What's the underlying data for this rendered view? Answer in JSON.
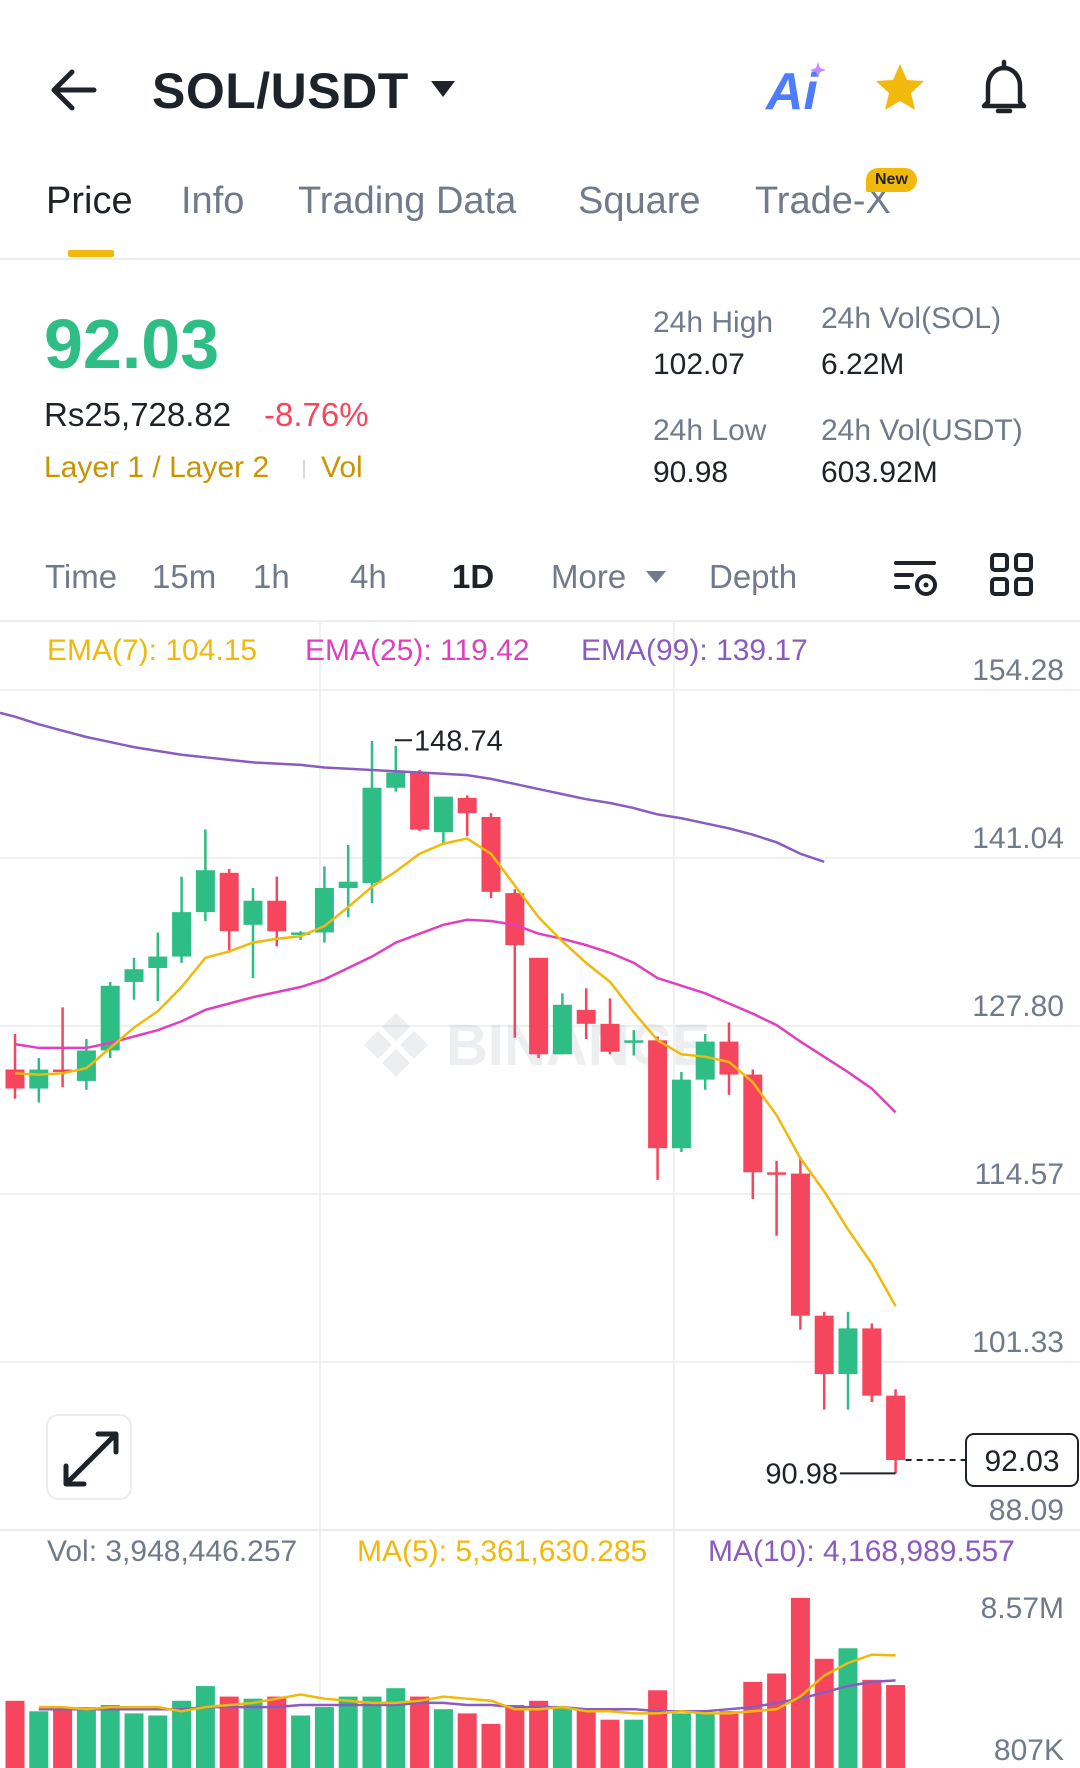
{
  "header": {
    "pair": "SOL/USDT",
    "ai_label": "Ai",
    "icons": [
      "back-arrow-icon",
      "caret-down-icon",
      "ai-icon",
      "star-icon",
      "bell-icon"
    ]
  },
  "tabs": [
    {
      "label": "Price",
      "active": true
    },
    {
      "label": "Info",
      "active": false
    },
    {
      "label": "Trading Data",
      "active": false
    },
    {
      "label": "Square",
      "active": false
    },
    {
      "label": "Trade-X",
      "active": false,
      "badge": "New"
    }
  ],
  "ticker": {
    "price": "92.03",
    "fiat": "Rs25,728.82",
    "change": "-8.76%",
    "tags": [
      "Layer 1 / Layer 2",
      "Vol"
    ],
    "high_label": "24h High",
    "high_value": "102.07",
    "low_label": "24h Low",
    "low_value": "90.98",
    "vol_sol_label": "24h Vol(SOL)",
    "vol_sol_value": "6.22M",
    "vol_usdt_label": "24h Vol(USDT)",
    "vol_usdt_value": "603.92M"
  },
  "intervals": {
    "items": [
      "Time",
      "15m",
      "1h",
      "4h",
      "1D",
      "More",
      "Depth"
    ],
    "active": "1D"
  },
  "colors": {
    "up": "#2ebd85",
    "down": "#f6465d",
    "ema7": "#f0b90b",
    "ema25": "#e040c0",
    "ema99": "#8a5cc0",
    "ma5": "#f0b90b",
    "ma10": "#8a5cc0",
    "accent": "#f0b90b"
  },
  "indicators": {
    "ema7": "EMA(7): 104.15",
    "ema25": "EMA(25): 119.42",
    "ema99": "EMA(99): 139.17",
    "vol": "Vol: 3,948,446.257",
    "ma5": "MA(5): 5,361,630.285",
    "ma10": "MA(10): 4,168,989.557"
  },
  "chart_data": {
    "type": "candlestick",
    "y_ticks": [
      "154.28",
      "141.04",
      "127.80",
      "114.57",
      "101.33",
      "88.09"
    ],
    "ylim": [
      88.09,
      154.28
    ],
    "high_marker": "148.74",
    "low_marker": "90.98",
    "current_price": "92.03",
    "watermark": "BINANCE",
    "candles": [
      {
        "o": 122.8,
        "h": 125.6,
        "l": 120.5,
        "c": 121.3
      },
      {
        "o": 121.3,
        "h": 123.7,
        "l": 120.2,
        "c": 122.8
      },
      {
        "o": 122.8,
        "h": 127.7,
        "l": 121.4,
        "c": 122.6
      },
      {
        "o": 121.9,
        "h": 125.2,
        "l": 121.2,
        "c": 124.3
      },
      {
        "o": 124.3,
        "h": 129.7,
        "l": 123.7,
        "c": 129.4
      },
      {
        "o": 129.7,
        "h": 131.6,
        "l": 128.3,
        "c": 130.7
      },
      {
        "o": 130.8,
        "h": 133.6,
        "l": 128.2,
        "c": 131.7
      },
      {
        "o": 131.7,
        "h": 138.0,
        "l": 131.2,
        "c": 135.2
      },
      {
        "o": 135.2,
        "h": 141.7,
        "l": 134.5,
        "c": 138.5
      },
      {
        "o": 138.3,
        "h": 138.6,
        "l": 132.0,
        "c": 133.7
      },
      {
        "o": 134.2,
        "h": 137.1,
        "l": 130.0,
        "c": 136.1
      },
      {
        "o": 136.1,
        "h": 138.0,
        "l": 132.5,
        "c": 133.7
      },
      {
        "o": 133.5,
        "h": 133.7,
        "l": 133.0,
        "c": 133.6
      },
      {
        "o": 133.6,
        "h": 138.8,
        "l": 132.8,
        "c": 137.1
      },
      {
        "o": 137.1,
        "h": 140.5,
        "l": 134.8,
        "c": 137.6
      },
      {
        "o": 137.5,
        "h": 148.7,
        "l": 135.9,
        "c": 145.0
      },
      {
        "o": 145.0,
        "h": 148.3,
        "l": 144.7,
        "c": 146.2
      },
      {
        "o": 146.2,
        "h": 146.4,
        "l": 141.6,
        "c": 141.7
      },
      {
        "o": 141.5,
        "h": 144.3,
        "l": 140.5,
        "c": 144.3
      },
      {
        "o": 144.2,
        "h": 144.4,
        "l": 141.2,
        "c": 143.0
      },
      {
        "o": 142.7,
        "h": 143.0,
        "l": 136.3,
        "c": 136.8
      },
      {
        "o": 136.7,
        "h": 137.0,
        "l": 125.3,
        "c": 132.6
      },
      {
        "o": 131.6,
        "h": 131.6,
        "l": 123.7,
        "c": 124.0
      },
      {
        "o": 124.0,
        "h": 128.8,
        "l": 124.0,
        "c": 127.9
      },
      {
        "o": 127.5,
        "h": 129.2,
        "l": 125.2,
        "c": 126.4
      },
      {
        "o": 126.4,
        "h": 128.4,
        "l": 124.0,
        "c": 124.2
      },
      {
        "o": 125.1,
        "h": 125.9,
        "l": 123.9,
        "c": 125.1
      },
      {
        "o": 125.1,
        "h": 125.4,
        "l": 114.1,
        "c": 116.6
      },
      {
        "o": 116.6,
        "h": 122.6,
        "l": 116.3,
        "c": 122.0
      },
      {
        "o": 122.0,
        "h": 125.6,
        "l": 121.2,
        "c": 125.0
      },
      {
        "o": 125.0,
        "h": 126.5,
        "l": 120.8,
        "c": 122.4
      },
      {
        "o": 122.4,
        "h": 122.8,
        "l": 112.6,
        "c": 114.7
      },
      {
        "o": 114.7,
        "h": 115.6,
        "l": 109.7,
        "c": 114.6
      },
      {
        "o": 114.6,
        "h": 115.9,
        "l": 102.3,
        "c": 103.4
      },
      {
        "o": 103.4,
        "h": 103.7,
        "l": 96.0,
        "c": 98.8
      },
      {
        "o": 98.8,
        "h": 103.7,
        "l": 96.0,
        "c": 102.4
      },
      {
        "o": 102.4,
        "h": 102.8,
        "l": 96.6,
        "c": 97.1
      },
      {
        "o": 97.1,
        "h": 97.6,
        "l": 90.98,
        "c": 92.03
      }
    ],
    "ema7": [
      122.5,
      122.4,
      122.5,
      122.9,
      124.5,
      126.1,
      127.4,
      129.3,
      131.6,
      132.1,
      132.8,
      133.1,
      133.3,
      134.1,
      135.6,
      137.2,
      138.4,
      139.8,
      140.6,
      141.0,
      139.8,
      137.3,
      134.8,
      132.9,
      131.2,
      129.7,
      127.3,
      125.1,
      124.0,
      123.8,
      123.4,
      121.8,
      119.2,
      115.8,
      113.2,
      110.2,
      107.5,
      104.15
    ],
    "ema25": [
      124.8,
      124.5,
      124.5,
      124.5,
      124.9,
      125.4,
      125.9,
      126.6,
      127.5,
      128.0,
      128.5,
      128.9,
      129.3,
      129.9,
      130.8,
      131.7,
      132.8,
      133.5,
      134.2,
      134.6,
      134.5,
      134.2,
      133.5,
      133.1,
      132.6,
      132.0,
      131.2,
      130.0,
      129.4,
      128.8,
      128.0,
      127.2,
      126.3,
      125.0,
      123.8,
      122.6,
      121.3,
      119.42
    ],
    "ema99": [
      150.6,
      150.0,
      149.5,
      149.0,
      148.6,
      148.2,
      147.9,
      147.6,
      147.4,
      147.2,
      147.0,
      146.9,
      146.8,
      146.6,
      146.5,
      146.4,
      146.3,
      146.2,
      146.1,
      146.0,
      145.7,
      145.3,
      144.9,
      144.5,
      144.1,
      143.8,
      143.4,
      142.9,
      142.6,
      142.2,
      141.8,
      141.3,
      140.7,
      139.8,
      139.17
    ],
    "volume": [
      3.2,
      2.7,
      2.9,
      2.9,
      3.0,
      2.6,
      2.5,
      3.2,
      3.9,
      3.4,
      3.3,
      3.4,
      2.5,
      2.9,
      3.4,
      3.4,
      3.8,
      3.4,
      2.8,
      2.6,
      2.1,
      3.0,
      3.2,
      2.9,
      2.8,
      2.3,
      2.3,
      3.7,
      2.6,
      2.6,
      2.7,
      4.1,
      4.5,
      8.1,
      5.2,
      5.7,
      4.2,
      3.95
    ],
    "ma5": [
      2.9,
      2.9,
      2.8,
      2.9,
      2.9,
      2.9,
      2.7,
      2.9,
      3.0,
      3.1,
      3.3,
      3.5,
      3.3,
      3.2,
      3.1,
      3.1,
      3.2,
      3.4,
      3.3,
      3.2,
      2.8,
      2.8,
      2.9,
      2.7,
      2.7,
      2.6,
      2.6,
      2.7,
      2.6,
      2.6,
      2.7,
      2.8,
      3.4,
      4.4,
      5.0,
      5.4,
      5.36
    ],
    "ma10": [
      2.8,
      2.8,
      2.8,
      2.8,
      2.8,
      2.8,
      2.8,
      2.9,
      2.9,
      2.9,
      2.9,
      3.0,
      3.0,
      3.0,
      3.0,
      3.0,
      3.1,
      3.1,
      3.0,
      3.0,
      2.9,
      2.9,
      2.9,
      2.8,
      2.8,
      2.8,
      2.7,
      2.7,
      2.7,
      2.8,
      2.9,
      3.1,
      3.3,
      3.6,
      3.9,
      4.1,
      4.17
    ],
    "vol_ticks": [
      "8.57M",
      "807K"
    ]
  }
}
